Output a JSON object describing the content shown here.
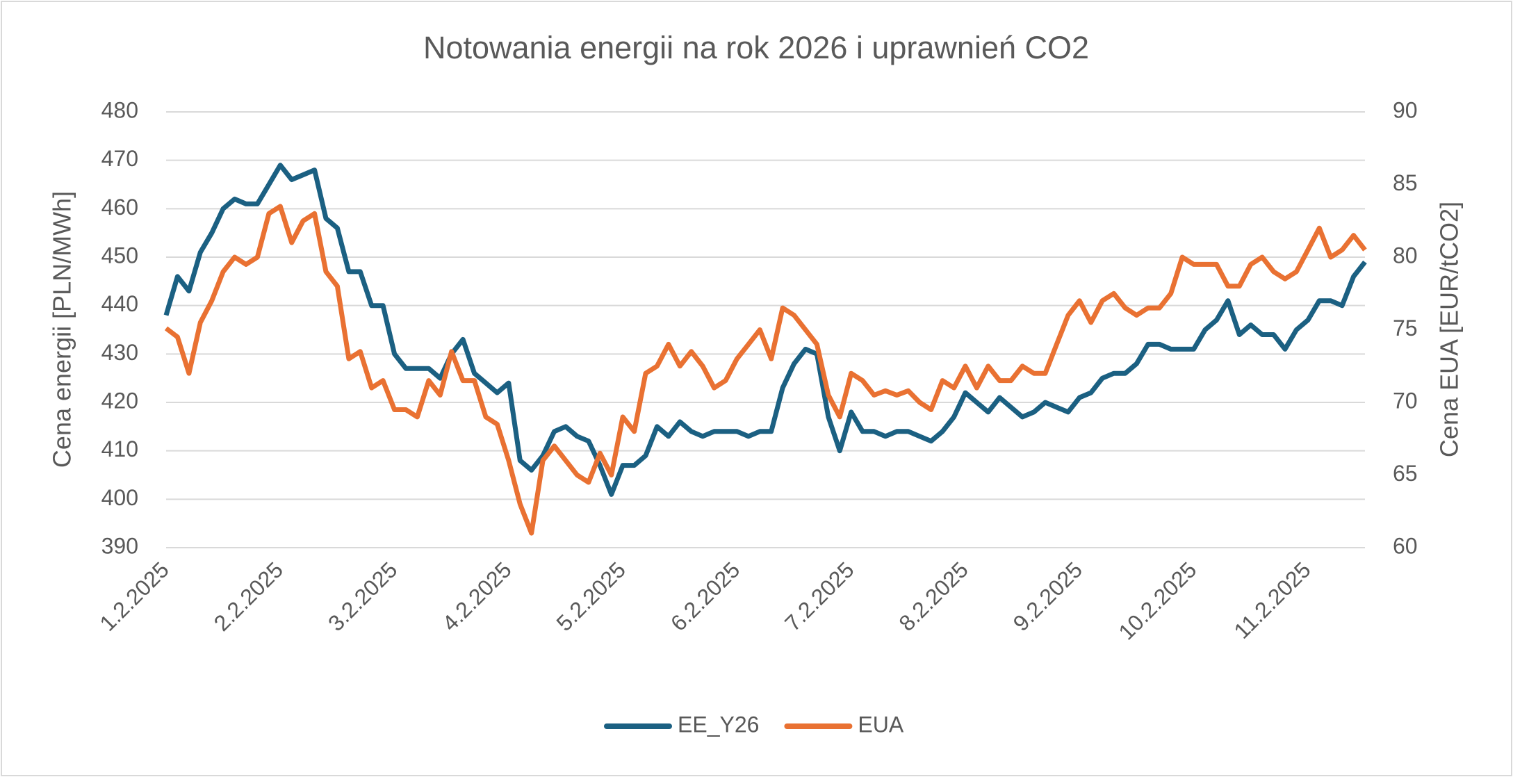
{
  "chart_data": {
    "type": "line",
    "title": "Notowania energii na rok 2026 i uprawnień CO2",
    "y_label": "Cena energii [PLN/MWh]",
    "y2_label": "Cena EUA [EUR/tCO2]",
    "categories": [
      "1.2.2025",
      null,
      null,
      null,
      null,
      null,
      null,
      null,
      null,
      null,
      "2.2.2025",
      null,
      null,
      null,
      null,
      null,
      null,
      null,
      null,
      null,
      "3.2.2025",
      null,
      null,
      null,
      null,
      null,
      null,
      null,
      null,
      null,
      "4.2.2025",
      null,
      null,
      null,
      null,
      null,
      null,
      null,
      null,
      null,
      "5.2.2025",
      null,
      null,
      null,
      null,
      null,
      null,
      null,
      null,
      null,
      "6.2.2025",
      null,
      null,
      null,
      null,
      null,
      null,
      null,
      null,
      null,
      "7.2.2025",
      null,
      null,
      null,
      null,
      null,
      null,
      null,
      null,
      null,
      "8.2.2025",
      null,
      null,
      null,
      null,
      null,
      null,
      null,
      null,
      null,
      "9.2.2025",
      null,
      null,
      null,
      null,
      null,
      null,
      null,
      null,
      null,
      "10.2.2025",
      null,
      null,
      null,
      null,
      null,
      null,
      null,
      null,
      null,
      "11.2.2025",
      null,
      null,
      null,
      null,
      null
    ],
    "series": [
      {
        "name": "EE_Y26",
        "color": "#1b6082",
        "axis": "y",
        "values": [
          438,
          446,
          443,
          451,
          455,
          460,
          462,
          461,
          461,
          465,
          469,
          466,
          467,
          468,
          458,
          456,
          447,
          447,
          440,
          440,
          430,
          427,
          427,
          427,
          425,
          430,
          433,
          426,
          424,
          422,
          424,
          408,
          406,
          409,
          414,
          415,
          413,
          412,
          407,
          401,
          407,
          407,
          409,
          415,
          413,
          416,
          414,
          413,
          414,
          414,
          414,
          413,
          414,
          414,
          423,
          428,
          431,
          430,
          417,
          410,
          418,
          414,
          414,
          413,
          414,
          414,
          413,
          412,
          414,
          417,
          422,
          420,
          418,
          421,
          419,
          417,
          418,
          420,
          419,
          418,
          421,
          422,
          425,
          426,
          426,
          428,
          432,
          432,
          431,
          431,
          431,
          435,
          437,
          441,
          434,
          436,
          434,
          434,
          431,
          435,
          437,
          441,
          441,
          440,
          446,
          449
        ]
      },
      {
        "name": "EUA",
        "color": "#e97132",
        "axis": "y2",
        "values": [
          75.1,
          74.5,
          72,
          75.5,
          77,
          79,
          80,
          79.5,
          80,
          83,
          83.5,
          81,
          82.5,
          83,
          79,
          78,
          73,
          73.5,
          71,
          71.5,
          69.5,
          69.5,
          69,
          71.5,
          70.5,
          73.5,
          71.5,
          71.5,
          69,
          68.5,
          66,
          63,
          61,
          66,
          67,
          66,
          65,
          64.5,
          66.5,
          65,
          69,
          68,
          72,
          72.5,
          74,
          72.5,
          73.5,
          72.5,
          71,
          71.5,
          73,
          74,
          75,
          73,
          76.5,
          76,
          75,
          74,
          70.5,
          69,
          72,
          71.5,
          70.5,
          70.8,
          70.5,
          70.8,
          70,
          69.5,
          71.5,
          71,
          72.5,
          71,
          72.5,
          71.5,
          71.5,
          72.5,
          72,
          72,
          74,
          76,
          77,
          75.5,
          77,
          77.5,
          76.5,
          76,
          76.5,
          76.5,
          77.5,
          80,
          79.5,
          79.5,
          79.5,
          78,
          78,
          79.5,
          80,
          79,
          78.5,
          79,
          80.5,
          82,
          80,
          80.5,
          81.5,
          80.5
        ]
      }
    ],
    "ylim": [
      390,
      480
    ],
    "yticks": [
      390,
      400,
      410,
      420,
      430,
      440,
      450,
      460,
      470,
      480
    ],
    "y2lim": [
      60,
      90
    ],
    "y2ticks": [
      60,
      65,
      70,
      75,
      80,
      85,
      90
    ],
    "grid": true,
    "legend": "bottom"
  }
}
